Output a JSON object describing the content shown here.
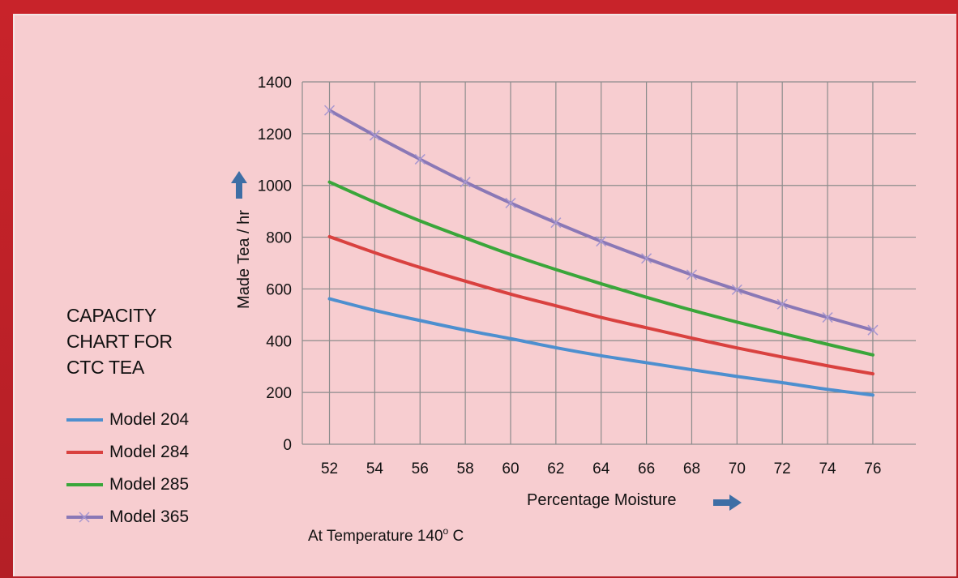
{
  "chart_data": {
    "type": "line",
    "title": "CAPACITY\nCHART FOR\nCTC TEA",
    "xlabel": "Percentage Moisture",
    "ylabel": "Made Tea / hr",
    "annotation_prefix": "At Temperature 140",
    "annotation_degree": "o",
    "annotation_suffix": " C",
    "x": [
      52,
      54,
      56,
      58,
      60,
      62,
      64,
      66,
      68,
      70,
      72,
      74,
      76
    ],
    "xlim": [
      50.8,
      77.9
    ],
    "ylim": [
      0,
      1400
    ],
    "yticks": [
      0,
      200,
      400,
      600,
      800,
      1000,
      1200,
      1400
    ],
    "grid": true,
    "legend_position": "left",
    "series": [
      {
        "name": "Model 204",
        "color": "#4d8fcf",
        "marker": "none",
        "values": [
          562,
          517,
          478,
          441,
          408,
          373,
          342,
          315,
          288,
          262,
          238,
          212,
          190
        ]
      },
      {
        "name": "Model 284",
        "color": "#d9413f",
        "marker": "none",
        "values": [
          802,
          740,
          683,
          630,
          580,
          535,
          490,
          450,
          410,
          372,
          337,
          303,
          272
        ]
      },
      {
        "name": "Model 285",
        "color": "#3aa63a",
        "marker": "none",
        "values": [
          1013,
          935,
          863,
          797,
          733,
          675,
          620,
          568,
          518,
          472,
          428,
          386,
          345
        ]
      },
      {
        "name": "Model 365",
        "color": "#8a78b6",
        "marker": "x",
        "values": [
          1290,
          1193,
          1101,
          1013,
          932,
          856,
          784,
          718,
          655,
          597,
          541,
          490,
          441
        ]
      }
    ]
  }
}
